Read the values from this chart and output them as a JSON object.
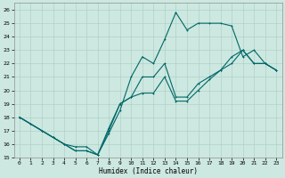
{
  "xlabel": "Humidex (Indice chaleur)",
  "bg_color": "#cce8e0",
  "grid_color": "#aaccc4",
  "line_color": "#006868",
  "xlim": [
    -0.5,
    23.5
  ],
  "ylim": [
    15,
    26.5
  ],
  "xticks": [
    0,
    1,
    2,
    3,
    4,
    5,
    6,
    7,
    8,
    9,
    10,
    11,
    12,
    13,
    14,
    15,
    16,
    17,
    18,
    19,
    20,
    21,
    22,
    23
  ],
  "yticks": [
    15,
    16,
    17,
    18,
    19,
    20,
    21,
    22,
    23,
    24,
    25,
    26
  ],
  "line1_x": [
    0,
    1,
    2,
    3,
    4,
    5,
    6,
    7,
    8,
    9,
    10,
    11,
    12,
    13,
    14,
    15,
    16,
    17,
    18,
    19,
    20,
    21,
    22,
    23
  ],
  "line1_y": [
    18,
    17.5,
    17,
    16.5,
    16,
    15.5,
    15.5,
    15.2,
    17.0,
    19.0,
    19.5,
    19.8,
    19.8,
    21.0,
    19.2,
    19.2,
    20.0,
    20.8,
    21.5,
    22.0,
    23.0,
    22.0,
    22.0,
    21.5
  ],
  "line2_x": [
    0,
    1,
    2,
    3,
    4,
    5,
    6,
    7,
    8,
    9,
    10,
    11,
    12,
    13,
    14,
    15,
    16,
    17,
    18,
    19,
    20,
    21,
    22,
    23
  ],
  "line2_y": [
    18,
    17.5,
    17,
    16.5,
    16,
    15.8,
    15.8,
    15.2,
    16.8,
    18.5,
    21.0,
    22.5,
    22.0,
    23.8,
    25.8,
    24.5,
    25.0,
    25.0,
    25.0,
    24.8,
    22.5,
    23.0,
    22.0,
    21.5
  ],
  "line3_x": [
    0,
    2,
    3,
    4,
    5,
    6,
    7,
    8,
    9,
    10,
    11,
    12,
    13,
    14,
    15,
    16,
    17,
    18,
    19,
    20,
    21,
    22,
    23
  ],
  "line3_y": [
    18,
    17,
    16.5,
    16,
    15.5,
    15.5,
    15.2,
    17.2,
    19.0,
    19.5,
    21.0,
    21.0,
    22.0,
    19.5,
    19.5,
    20.5,
    21.0,
    21.5,
    22.5,
    23.0,
    22.0,
    22.0,
    21.5
  ]
}
